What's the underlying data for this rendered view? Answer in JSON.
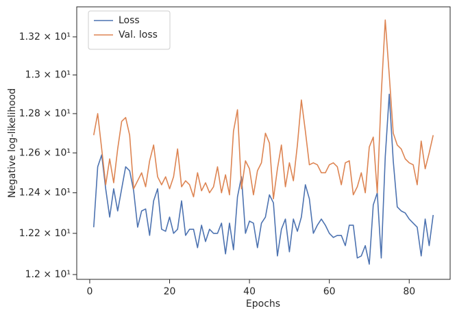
{
  "chart_data": {
    "type": "line",
    "xlabel": "Epochs",
    "ylabel": "Negative log-likelihood",
    "x": [
      1,
      2,
      3,
      4,
      5,
      6,
      7,
      8,
      9,
      10,
      11,
      12,
      13,
      14,
      15,
      16,
      17,
      18,
      19,
      20,
      21,
      22,
      23,
      24,
      25,
      26,
      27,
      28,
      29,
      30,
      31,
      32,
      33,
      34,
      35,
      36,
      37,
      38,
      39,
      40,
      41,
      42,
      43,
      44,
      45,
      46,
      47,
      48,
      49,
      50,
      51,
      52,
      53,
      54,
      55,
      56,
      57,
      58,
      59,
      60,
      61,
      62,
      63,
      64,
      65,
      66,
      67,
      68,
      69,
      70,
      71,
      72,
      73,
      74,
      75,
      76,
      77,
      78,
      79,
      80,
      81,
      82,
      83,
      84,
      85,
      86
    ],
    "series": [
      {
        "name": "Loss",
        "color": "#4c72b0",
        "values": [
          12.23,
          12.53,
          12.59,
          12.42,
          12.28,
          12.42,
          12.31,
          12.42,
          12.53,
          12.51,
          12.41,
          12.23,
          12.31,
          12.32,
          12.19,
          12.36,
          12.42,
          12.22,
          12.21,
          12.28,
          12.2,
          12.22,
          12.36,
          12.19,
          12.22,
          12.22,
          12.13,
          12.24,
          12.16,
          12.22,
          12.2,
          12.2,
          12.25,
          12.1,
          12.25,
          12.12,
          12.38,
          12.48,
          12.2,
          12.26,
          12.25,
          12.13,
          12.25,
          12.28,
          12.39,
          12.35,
          12.09,
          12.22,
          12.27,
          12.11,
          12.27,
          12.21,
          12.28,
          12.44,
          12.37,
          12.2,
          12.24,
          12.27,
          12.24,
          12.2,
          12.18,
          12.19,
          12.19,
          12.14,
          12.24,
          12.24,
          12.08,
          12.09,
          12.14,
          12.05,
          12.34,
          12.4,
          12.08,
          12.58,
          12.9,
          12.56,
          12.33,
          12.31,
          12.3,
          12.27,
          12.25,
          12.23,
          12.09,
          12.27,
          12.14,
          12.29
        ]
      },
      {
        "name": "Val. loss",
        "color": "#dd8452",
        "values": [
          12.69,
          12.8,
          12.62,
          12.44,
          12.57,
          12.45,
          12.62,
          12.76,
          12.78,
          12.69,
          12.42,
          12.46,
          12.5,
          12.43,
          12.56,
          12.64,
          12.48,
          12.44,
          12.48,
          12.42,
          12.48,
          12.62,
          12.43,
          12.46,
          12.44,
          12.38,
          12.5,
          12.41,
          12.45,
          12.4,
          12.43,
          12.53,
          12.4,
          12.49,
          12.39,
          12.71,
          12.82,
          12.42,
          12.56,
          12.52,
          12.39,
          12.51,
          12.55,
          12.7,
          12.65,
          12.37,
          12.52,
          12.64,
          12.43,
          12.55,
          12.46,
          12.64,
          12.87,
          12.71,
          12.54,
          12.55,
          12.54,
          12.5,
          12.5,
          12.54,
          12.55,
          12.53,
          12.44,
          12.55,
          12.56,
          12.39,
          12.43,
          12.5,
          12.4,
          12.63,
          12.68,
          12.4,
          12.9,
          13.29,
          13.0,
          12.7,
          12.64,
          12.62,
          12.57,
          12.55,
          12.54,
          12.44,
          12.66,
          12.52,
          12.6,
          12.69
        ]
      }
    ],
    "xlim": [
      -3.25,
      90.25
    ],
    "xticks": [
      0,
      20,
      40,
      60,
      80
    ],
    "ylim": [
      11.977,
      13.36
    ],
    "yscale": "log",
    "yticks": [
      {
        "value": 12,
        "label": "1.2 × 10¹"
      },
      {
        "value": 12.2,
        "label": "1.22 × 10¹"
      },
      {
        "value": 12.4,
        "label": "1.24 × 10¹"
      },
      {
        "value": 12.6,
        "label": "1.26 × 10¹"
      },
      {
        "value": 12.8,
        "label": "1.28 × 10¹"
      },
      {
        "value": 13,
        "label": "1.3 × 10¹"
      },
      {
        "value": 13.2,
        "label": "1.32 × 10¹"
      }
    ],
    "legend": "upper left",
    "grid": false
  }
}
